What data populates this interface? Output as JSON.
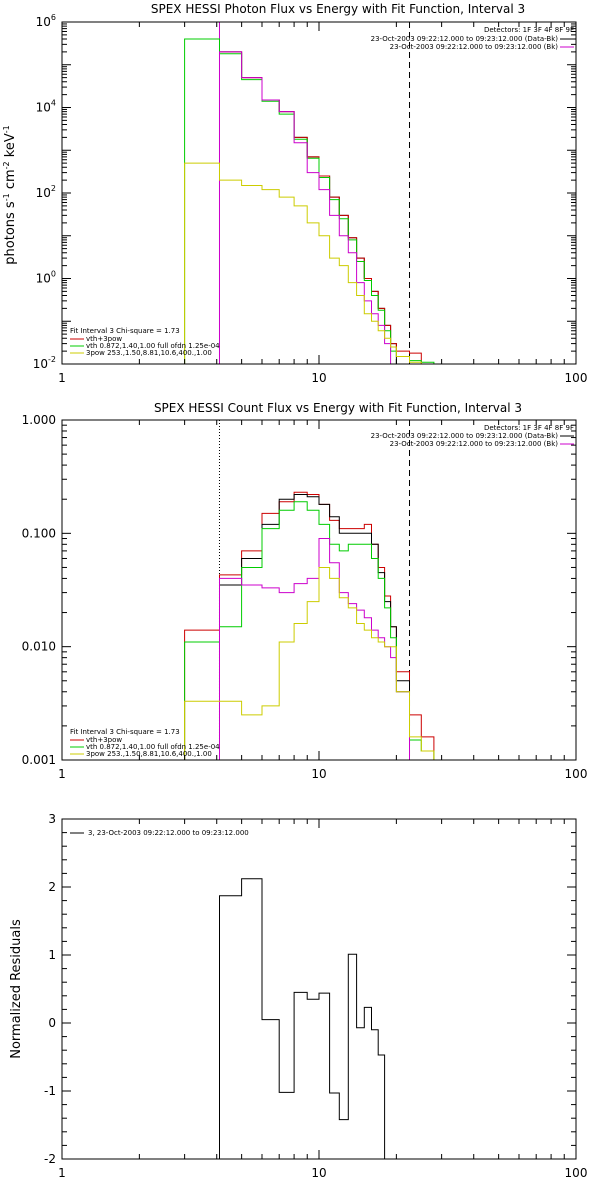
{
  "chart_data": [
    {
      "type": "line",
      "title": "SPEX HESSI Photon Flux vs Energy with Fit Function, Interval 3",
      "xscale": "log",
      "yscale": "log",
      "xlim": [
        1,
        100
      ],
      "ylim": [
        0.01,
        1000000
      ],
      "xticks": [
        {
          "v": 1,
          "label": "1"
        },
        {
          "v": 10,
          "label": "10"
        },
        {
          "v": 100,
          "label": "100"
        }
      ],
      "yticks": [
        {
          "v": 0.01,
          "base": "10",
          "exp": "-2"
        },
        {
          "v": 1,
          "base": "10",
          "exp": "0"
        },
        {
          "v": 100,
          "base": "10",
          "exp": "2"
        },
        {
          "v": 10000,
          "base": "10",
          "exp": "4"
        },
        {
          "v": 1000000,
          "base": "10",
          "exp": "6"
        }
      ],
      "ylabel": {
        "p1": "photons s",
        "e1": "-1",
        "p2": " cm",
        "e2": "-2",
        "p3": " keV",
        "e3": "-1"
      },
      "vlines": [
        {
          "x": 4.1,
          "style": "solid",
          "color": "#cc00cc"
        },
        {
          "x": 22.5,
          "style": "dashed",
          "color": "#000000"
        }
      ],
      "annotations": {
        "detectors": "Detectors: 1F 3F 4F 8F 9F",
        "line1": "23-Oct-2003 09:22:12.000 to 09:23:12.000 (Data-Bk)",
        "line2": "23-Oct-2003 09:22:12.000 to 09:23:12.000 (Bk)",
        "line1_color": "#000000",
        "line2_color": "#cc00cc"
      },
      "legend": {
        "header": "Fit Interval 3    Chi-square = 1.73",
        "entries": [
          {
            "text": "vth+3pow",
            "color": "#cc0000"
          },
          {
            "text": "vth 0.872,1.40,1.00  full ofdn 1.25e-04",
            "color": "#00cc00"
          },
          {
            "text": "3pow 253.,1.50,8.81,10.6,400.,1.00",
            "color": "#cccc00"
          }
        ]
      },
      "bin_edges": [
        3,
        4.1,
        5,
        6,
        7,
        8,
        9,
        10,
        11,
        12,
        13,
        14,
        15,
        16,
        17,
        18,
        19,
        20,
        22.5,
        25,
        28
      ],
      "series": [
        {
          "color": "#000000",
          "values": [
            null,
            200000,
            50000,
            15000,
            8000,
            2000,
            700,
            250,
            80,
            30,
            9,
            3,
            1,
            0.5,
            0.2,
            0.08,
            0.03,
            null,
            null,
            null
          ]
        },
        {
          "color": "#cc0000",
          "values": [
            null,
            200000,
            50000,
            15000,
            8000,
            2000,
            700,
            250,
            80,
            30,
            9,
            3,
            1,
            0.5,
            0.2,
            0.08,
            0.03,
            0.02,
            0.018,
            null
          ]
        },
        {
          "color": "#00cc00",
          "values": [
            400000,
            180000,
            45000,
            14000,
            7000,
            1800,
            650,
            230,
            70,
            25,
            8,
            2.5,
            0.9,
            0.4,
            0.18,
            0.06,
            0.02,
            0.015,
            0.012,
            0.011
          ]
        },
        {
          "color": "#cc00cc",
          "values": [
            null,
            200000,
            50000,
            15000,
            8000,
            1500,
            300,
            120,
            30,
            10,
            4,
            0.8,
            0.3,
            0.15,
            0.08,
            0.03,
            0.01,
            null,
            null,
            null
          ]
        },
        {
          "color": "#cccc00",
          "values": [
            500,
            200,
            150,
            120,
            80,
            50,
            20,
            10,
            3,
            2,
            0.8,
            0.4,
            0.15,
            0.1,
            0.06,
            0.04,
            0.025,
            0.015,
            0.011,
            0.01
          ]
        }
      ]
    },
    {
      "type": "line",
      "title": "SPEX HESSI Count Flux vs Energy with Fit Function, Interval 3",
      "xscale": "log",
      "yscale": "log",
      "xlim": [
        1,
        100
      ],
      "ylim": [
        0.001,
        1
      ],
      "xticks": [
        {
          "v": 1,
          "label": "1"
        },
        {
          "v": 10,
          "label": "10"
        },
        {
          "v": 100,
          "label": "100"
        }
      ],
      "yticks": [
        {
          "v": 0.001,
          "label": "0.001"
        },
        {
          "v": 0.01,
          "label": "0.010"
        },
        {
          "v": 0.1,
          "label": "0.100"
        },
        {
          "v": 1,
          "label": "1.000"
        }
      ],
      "vlines": [
        {
          "x": 4.1,
          "style": "dotted",
          "color": "#000000"
        },
        {
          "x": 4.1,
          "style": "solid",
          "color": "#cc00cc",
          "from": 0.001,
          "to": 0.012
        },
        {
          "x": 22.5,
          "style": "dashed",
          "color": "#000000"
        }
      ],
      "annotations": {
        "detectors": "Detectors: 1F 3F 4F 8F 9F",
        "line1": "23-Oct-2003 09:22:12.000 to 09:23:12.000 (Data-Bk)",
        "line2": "23-Oct-2003 09:22:12.000 to 09:23:12.000 (Bk)",
        "line1_color": "#000000",
        "line2_color": "#cc00cc"
      },
      "legend": {
        "header": "Fit Interval 3    Chi-square = 1.73",
        "entries": [
          {
            "text": "vth+3pow",
            "color": "#cc0000"
          },
          {
            "text": "vth 0.872,1.40,1.00  full ofdn 1.25e-04",
            "color": "#00cc00"
          },
          {
            "text": "3pow 253.,1.50,8.81,10.6,400.,1.00",
            "color": "#cccc00"
          }
        ]
      },
      "bin_edges": [
        3,
        4.1,
        5,
        6,
        7,
        8,
        9,
        10,
        11,
        12,
        13,
        14,
        15,
        16,
        17,
        18,
        19,
        20,
        22.5,
        25,
        28
      ],
      "series": [
        {
          "color": "#cc0000",
          "values": [
            0.014,
            0.043,
            0.07,
            0.15,
            0.19,
            0.23,
            0.22,
            0.18,
            0.13,
            0.11,
            0.11,
            0.11,
            0.12,
            0.08,
            0.05,
            0.028,
            0.015,
            0.006,
            0.0025,
            0.0016
          ]
        },
        {
          "color": "#000000",
          "values": [
            null,
            0.035,
            0.06,
            0.12,
            0.2,
            0.22,
            0.21,
            0.18,
            0.14,
            0.1,
            0.1,
            0.1,
            0.1,
            0.08,
            0.045,
            0.025,
            0.015,
            0.005,
            null,
            null
          ]
        },
        {
          "color": "#00cc00",
          "values": [
            0.011,
            0.015,
            0.05,
            0.11,
            0.16,
            0.19,
            0.16,
            0.12,
            0.08,
            0.07,
            0.08,
            0.08,
            0.08,
            0.06,
            0.04,
            0.022,
            0.012,
            0.004,
            0.0015,
            0.0012
          ]
        },
        {
          "color": "#cc00cc",
          "values": [
            null,
            0.04,
            0.035,
            0.033,
            0.03,
            0.036,
            0.04,
            0.09,
            0.055,
            0.03,
            0.024,
            0.021,
            0.018,
            0.014,
            0.012,
            0.01,
            0.008,
            0.004,
            null,
            null
          ]
        },
        {
          "color": "#cccc00",
          "values": [
            0.0033,
            0.0033,
            0.0025,
            0.003,
            0.011,
            0.016,
            0.025,
            0.05,
            0.04,
            0.027,
            0.022,
            0.016,
            0.014,
            0.012,
            0.011,
            0.01,
            0.01,
            0.004,
            0.0016,
            0.0012
          ]
        }
      ]
    },
    {
      "type": "line",
      "title": "",
      "xscale": "log",
      "yscale": "linear",
      "xlim": [
        1,
        100
      ],
      "ylim": [
        -2,
        3
      ],
      "ylabel": "Normalized Residuals",
      "xticks": [
        {
          "v": 1,
          "label": "1"
        },
        {
          "v": 10,
          "label": "10"
        },
        {
          "v": 100,
          "label": "100"
        }
      ],
      "yticks": [
        {
          "v": -2,
          "label": "-2"
        },
        {
          "v": -1,
          "label": "-1"
        },
        {
          "v": 0,
          "label": "0"
        },
        {
          "v": 1,
          "label": "1"
        },
        {
          "v": 2,
          "label": "2"
        },
        {
          "v": 3,
          "label": "3"
        }
      ],
      "legend": {
        "entries": [
          {
            "text": "3, 23-Oct-2003 09:22:12.000 to 09:23:12.000",
            "color": "#000000"
          }
        ]
      },
      "bin_edges": [
        4.1,
        5,
        6,
        7,
        8,
        9,
        10,
        11,
        12,
        13,
        14,
        15,
        16,
        17,
        18,
        19,
        20,
        22.5
      ],
      "series": [
        {
          "color": "#000000",
          "values": [
            1.87,
            2.12,
            0.05,
            -1.02,
            0.45,
            0.35,
            0.44,
            -1.03,
            -1.42,
            1.01,
            -0.07,
            0.23,
            -0.1,
            -0.47,
            null,
            null,
            null
          ]
        }
      ]
    }
  ]
}
